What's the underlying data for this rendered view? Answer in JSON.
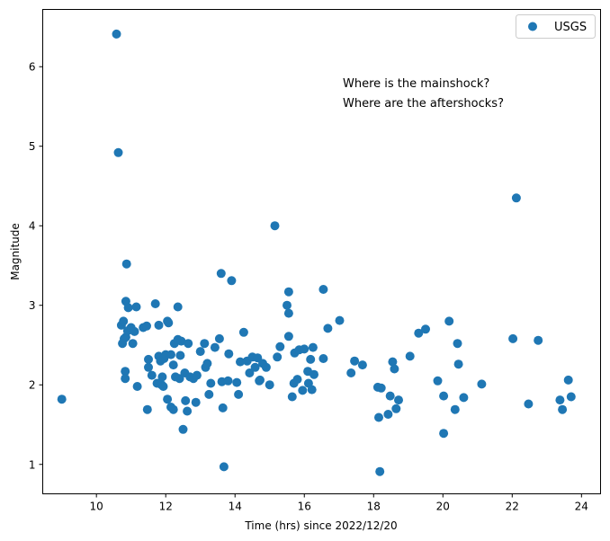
{
  "chart_data": {
    "type": "scatter",
    "xlabel": "Time (hrs) since 2022/12/20",
    "ylabel": "Magnitude",
    "xlim": [
      8.45,
      24.55
    ],
    "ylim": [
      0.63,
      6.72
    ],
    "xticks": [
      10,
      12,
      14,
      16,
      18,
      20,
      22,
      24
    ],
    "yticks": [
      1,
      2,
      3,
      4,
      5,
      6
    ],
    "grid": false,
    "legend_position": "top-right",
    "annotations": [
      "Where is the mainshock?",
      "Where are the aftershocks?"
    ],
    "series": [
      {
        "name": "USGS",
        "color": "#1f77b4",
        "points": [
          [
            9.0,
            1.82
          ],
          [
            10.58,
            6.41
          ],
          [
            10.63,
            4.92
          ],
          [
            10.87,
            3.52
          ],
          [
            10.85,
            3.05
          ],
          [
            10.72,
            2.75
          ],
          [
            10.78,
            2.8
          ],
          [
            10.85,
            2.6
          ],
          [
            10.8,
            2.58
          ],
          [
            10.75,
            2.52
          ],
          [
            10.83,
            2.17
          ],
          [
            10.83,
            2.08
          ],
          [
            10.9,
            2.68
          ],
          [
            10.92,
            2.97
          ],
          [
            11.0,
            2.72
          ],
          [
            11.05,
            2.52
          ],
          [
            11.1,
            2.67
          ],
          [
            11.15,
            2.98
          ],
          [
            11.18,
            1.98
          ],
          [
            11.35,
            2.72
          ],
          [
            11.45,
            2.74
          ],
          [
            11.5,
            2.32
          ],
          [
            11.5,
            2.22
          ],
          [
            11.47,
            1.69
          ],
          [
            11.6,
            2.12
          ],
          [
            11.7,
            3.02
          ],
          [
            11.75,
            2.02
          ],
          [
            11.8,
            2.36
          ],
          [
            11.8,
            2.75
          ],
          [
            11.85,
            2.3
          ],
          [
            11.88,
            2.0
          ],
          [
            11.9,
            2.1
          ],
          [
            11.93,
            1.98
          ],
          [
            11.95,
            2.33
          ],
          [
            12.0,
            2.38
          ],
          [
            12.05,
            2.8
          ],
          [
            12.08,
            2.78
          ],
          [
            12.05,
            1.82
          ],
          [
            12.15,
            2.38
          ],
          [
            12.15,
            1.72
          ],
          [
            12.22,
            1.69
          ],
          [
            12.22,
            2.25
          ],
          [
            12.25,
            2.52
          ],
          [
            12.28,
            2.1
          ],
          [
            12.35,
            2.57
          ],
          [
            12.35,
            2.98
          ],
          [
            12.4,
            2.08
          ],
          [
            12.42,
            2.37
          ],
          [
            12.45,
            2.55
          ],
          [
            12.5,
            1.44
          ],
          [
            12.55,
            2.15
          ],
          [
            12.57,
            1.8
          ],
          [
            12.62,
            1.67
          ],
          [
            12.65,
            2.52
          ],
          [
            12.7,
            2.1
          ],
          [
            12.8,
            2.08
          ],
          [
            12.87,
            1.78
          ],
          [
            12.9,
            2.12
          ],
          [
            13.0,
            2.42
          ],
          [
            13.12,
            2.52
          ],
          [
            13.15,
            2.22
          ],
          [
            13.2,
            2.27
          ],
          [
            13.25,
            1.88
          ],
          [
            13.3,
            2.02
          ],
          [
            13.42,
            2.47
          ],
          [
            13.55,
            2.58
          ],
          [
            13.6,
            3.4
          ],
          [
            13.62,
            2.04
          ],
          [
            13.65,
            1.71
          ],
          [
            13.68,
            0.97
          ],
          [
            13.8,
            2.05
          ],
          [
            13.82,
            2.39
          ],
          [
            13.9,
            3.31
          ],
          [
            14.05,
            2.03
          ],
          [
            14.1,
            1.88
          ],
          [
            14.15,
            2.29
          ],
          [
            14.25,
            2.66
          ],
          [
            14.35,
            2.3
          ],
          [
            14.42,
            2.15
          ],
          [
            14.5,
            2.35
          ],
          [
            14.58,
            2.22
          ],
          [
            14.65,
            2.34
          ],
          [
            14.7,
            2.05
          ],
          [
            14.72,
            2.06
          ],
          [
            14.8,
            2.27
          ],
          [
            14.9,
            2.22
          ],
          [
            15.0,
            2.0
          ],
          [
            15.15,
            4.0
          ],
          [
            15.22,
            2.35
          ],
          [
            15.3,
            2.48
          ],
          [
            15.5,
            3.0
          ],
          [
            15.55,
            2.9
          ],
          [
            15.55,
            2.61
          ],
          [
            15.55,
            3.17
          ],
          [
            15.65,
            1.85
          ],
          [
            15.7,
            2.02
          ],
          [
            15.72,
            2.4
          ],
          [
            15.8,
            2.07
          ],
          [
            15.85,
            2.44
          ],
          [
            15.95,
            1.93
          ],
          [
            16.0,
            2.45
          ],
          [
            16.1,
            2.17
          ],
          [
            16.12,
            2.02
          ],
          [
            16.18,
            2.32
          ],
          [
            16.22,
            1.94
          ],
          [
            16.25,
            2.47
          ],
          [
            16.28,
            2.13
          ],
          [
            16.55,
            3.2
          ],
          [
            16.55,
            2.33
          ],
          [
            16.68,
            2.71
          ],
          [
            17.02,
            2.81
          ],
          [
            17.35,
            2.15
          ],
          [
            17.45,
            2.3
          ],
          [
            17.68,
            2.25
          ],
          [
            18.12,
            1.97
          ],
          [
            18.15,
            1.59
          ],
          [
            18.18,
            0.91
          ],
          [
            18.22,
            1.96
          ],
          [
            18.42,
            1.63
          ],
          [
            18.48,
            1.86
          ],
          [
            18.55,
            2.29
          ],
          [
            18.6,
            2.2
          ],
          [
            18.65,
            1.7
          ],
          [
            18.72,
            1.81
          ],
          [
            19.05,
            2.36
          ],
          [
            19.3,
            2.65
          ],
          [
            19.5,
            2.7
          ],
          [
            19.85,
            2.05
          ],
          [
            20.02,
            1.86
          ],
          [
            20.02,
            1.39
          ],
          [
            20.18,
            2.8
          ],
          [
            20.35,
            1.69
          ],
          [
            20.42,
            2.52
          ],
          [
            20.45,
            2.26
          ],
          [
            20.6,
            1.84
          ],
          [
            21.12,
            2.01
          ],
          [
            22.02,
            2.58
          ],
          [
            22.12,
            4.35
          ],
          [
            22.47,
            1.76
          ],
          [
            22.75,
            2.56
          ],
          [
            23.38,
            1.81
          ],
          [
            23.45,
            1.69
          ],
          [
            23.62,
            2.06
          ],
          [
            23.7,
            1.85
          ]
        ]
      }
    ]
  }
}
